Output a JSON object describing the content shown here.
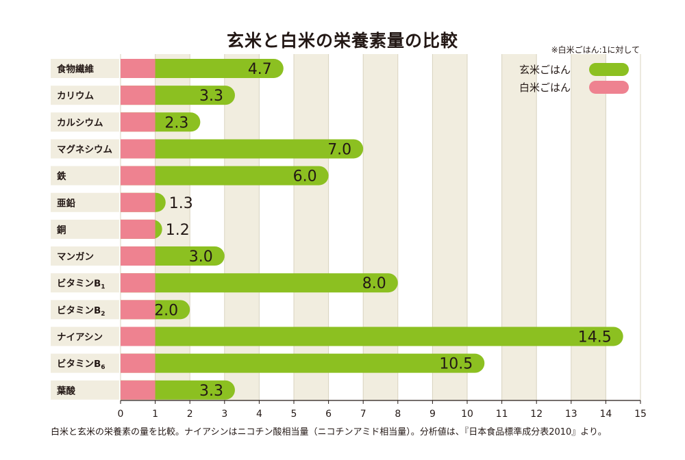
{
  "chart_data": {
    "type": "bar",
    "orientation": "horizontal",
    "title": "玄米と白米の栄養素量の比較",
    "note": "※白米ごはん:1に対して",
    "categories": [
      "食物繊維",
      "カリウム",
      "カルシウム",
      "マグネシウム",
      "鉄",
      "亜鉛",
      "銅",
      "マンガン",
      "ビタミンB1",
      "ビタミンB2",
      "ナイアシン",
      "ビタミンB6",
      "葉酸"
    ],
    "category_labels": [
      {
        "text": "食物繊維",
        "sub": ""
      },
      {
        "text": "カリウム",
        "sub": ""
      },
      {
        "text": "カルシウム",
        "sub": ""
      },
      {
        "text": "マグネシウム",
        "sub": ""
      },
      {
        "text": "鉄",
        "sub": ""
      },
      {
        "text": "亜鉛",
        "sub": ""
      },
      {
        "text": "銅",
        "sub": ""
      },
      {
        "text": "マンガン",
        "sub": ""
      },
      {
        "text": "ビタミンB",
        "sub": "1"
      },
      {
        "text": "ビタミンB",
        "sub": "2"
      },
      {
        "text": "ナイアシン",
        "sub": ""
      },
      {
        "text": "ビタミンB",
        "sub": "6"
      },
      {
        "text": "葉酸",
        "sub": ""
      }
    ],
    "series": [
      {
        "name": "白米ごはん",
        "color": "#ee8290",
        "values": [
          1,
          1,
          1,
          1,
          1,
          1,
          1,
          1,
          1,
          1,
          1,
          1,
          1
        ]
      },
      {
        "name": "玄米ごはん",
        "color": "#8cc021",
        "values": [
          4.7,
          3.3,
          2.3,
          7.0,
          6.0,
          1.3,
          1.2,
          3.0,
          8.0,
          2.0,
          14.5,
          10.5,
          3.3
        ]
      }
    ],
    "value_labels": [
      "4.7",
      "3.3",
      "2.3",
      "7.0",
      "6.0",
      "1.3",
      "1.2",
      "3.0",
      "8.0",
      "2.0",
      "14.5",
      "10.5",
      "3.3"
    ],
    "xlim": [
      0,
      15
    ],
    "xticks": [
      0,
      1,
      2,
      3,
      4,
      5,
      6,
      7,
      8,
      9,
      10,
      11,
      12,
      13,
      14,
      15
    ],
    "grid": true,
    "legend_position": "top-right",
    "colors": {
      "band": "#f1eddf",
      "label_box": "#f1eddf",
      "axis": "#231815"
    }
  },
  "legend": {
    "genmai": "玄米ごはん",
    "hakumai": "白米ごはん"
  },
  "footnote": "白米と玄米の栄養素の量を比較。ナイアシンはニコチン酸相当量（ニコチンアミド相当量）。分析値は、『日本食品標準成分表2010』より。"
}
